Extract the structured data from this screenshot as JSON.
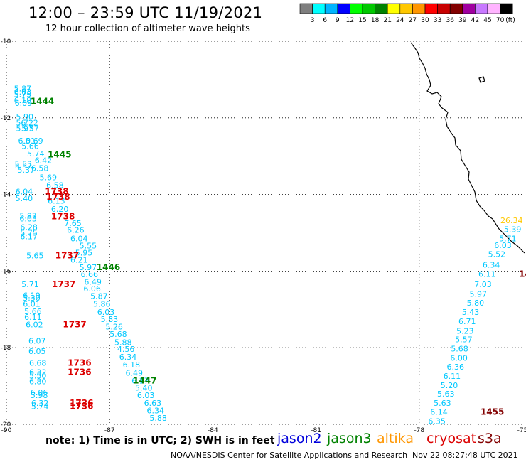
{
  "header": {
    "title": "12:00 – 23:59 UTC 11/19/2021",
    "subtitle": "12 hour collection of altimeter wave heights"
  },
  "legend": {
    "unit": "(ft)",
    "bins": [
      {
        "label": "3",
        "color": "#7f7f7f"
      },
      {
        "label": "6",
        "color": "#00ffff"
      },
      {
        "label": "9",
        "color": "#00b4ff"
      },
      {
        "label": "12",
        "color": "#0000ff"
      },
      {
        "label": "15",
        "color": "#00ff00"
      },
      {
        "label": "18",
        "color": "#00c800"
      },
      {
        "label": "21",
        "color": "#008200"
      },
      {
        "label": "24",
        "color": "#ffff00"
      },
      {
        "label": "27",
        "color": "#ffc800"
      },
      {
        "label": "30",
        "color": "#ff9600"
      },
      {
        "label": "33",
        "color": "#ff0000"
      },
      {
        "label": "36",
        "color": "#c80000"
      },
      {
        "label": "39",
        "color": "#820000"
      },
      {
        "label": "42",
        "color": "#a000a0"
      },
      {
        "label": "45",
        "color": "#c878ff"
      },
      {
        "label": "70",
        "color": "#ffb4ff"
      },
      {
        "label": "",
        "color": "#000000"
      }
    ]
  },
  "map": {
    "lon_ticks": [
      "-90",
      "-87",
      "-84",
      "-81",
      "-78",
      "-75"
    ],
    "lat_ticks": [
      "-10",
      "-12",
      "-14",
      "-16",
      "-18",
      "-20"
    ],
    "lon_range": [
      -90,
      -75
    ],
    "lat_range": [
      -20,
      -10
    ],
    "wave_labels": [
      {
        "text": "5.87",
        "color": "#00c8ff",
        "lon": -89.78,
        "lat": -11.31
      },
      {
        "text": "6.03",
        "color": "#00c8ff",
        "lon": -89.78,
        "lat": -11.39
      },
      {
        "text": "5.75",
        "color": "#00c8ff",
        "lon": -89.78,
        "lat": -11.46
      },
      {
        "text": "6.18",
        "color": "#00c8ff",
        "lon": -89.78,
        "lat": -11.61
      },
      {
        "text": "6.09",
        "color": "#00c8ff",
        "lon": -89.76,
        "lat": -11.69
      },
      {
        "text": "5.90",
        "color": "#00c8ff",
        "lon": -89.72,
        "lat": -12.04
      },
      {
        "text": "5.72",
        "color": "#00c8ff",
        "lon": -89.72,
        "lat": -12.2
      },
      {
        "text": "6.12",
        "color": "#00c8ff",
        "lon": -89.58,
        "lat": -12.2
      },
      {
        "text": "5.97",
        "color": "#00c8ff",
        "lon": -89.72,
        "lat": -12.35
      },
      {
        "text": "5.57",
        "color": "#00c8ff",
        "lon": -89.56,
        "lat": -12.35
      },
      {
        "text": "6.01",
        "color": "#00c8ff",
        "lon": -89.66,
        "lat": -12.67
      },
      {
        "text": "5.69",
        "color": "#00c8ff",
        "lon": -89.44,
        "lat": -12.67
      },
      {
        "text": "5.66",
        "color": "#00c8ff",
        "lon": -89.56,
        "lat": -12.81
      },
      {
        "text": "5.74",
        "color": "#00c8ff",
        "lon": -89.4,
        "lat": -13.01
      },
      {
        "text": "6.42",
        "color": "#00c8ff",
        "lon": -89.18,
        "lat": -13.18
      },
      {
        "text": "5.53",
        "color": "#00c8ff",
        "lon": -89.76,
        "lat": -13.27
      },
      {
        "text": "5.57",
        "color": "#00c8ff",
        "lon": -89.76,
        "lat": -13.32
      },
      {
        "text": "5.37",
        "color": "#00c8ff",
        "lon": -89.68,
        "lat": -13.43
      },
      {
        "text": "6.58",
        "color": "#00c8ff",
        "lon": -89.28,
        "lat": -13.39
      },
      {
        "text": "5.69",
        "color": "#00c8ff",
        "lon": -89.04,
        "lat": -13.63
      },
      {
        "text": "6.58",
        "color": "#00c8ff",
        "lon": -88.84,
        "lat": -13.83
      },
      {
        "text": "6.04",
        "color": "#00c8ff",
        "lon": -89.74,
        "lat": -14.0
      },
      {
        "text": "5.40",
        "color": "#00c8ff",
        "lon": -89.74,
        "lat": -14.17
      },
      {
        "text": "6.13",
        "color": "#00c8ff",
        "lon": -88.8,
        "lat": -14.24
      },
      {
        "text": "6.20",
        "color": "#00c8ff",
        "lon": -88.7,
        "lat": -14.45
      },
      {
        "text": "5.87",
        "color": "#00c8ff",
        "lon": -89.62,
        "lat": -14.63
      },
      {
        "text": "6.03",
        "color": "#00c8ff",
        "lon": -89.62,
        "lat": -14.7
      },
      {
        "text": "7.65",
        "color": "#00c8ff",
        "lon": -88.32,
        "lat": -14.82
      },
      {
        "text": "6.28",
        "color": "#00c8ff",
        "lon": -89.6,
        "lat": -14.93
      },
      {
        "text": "6.26",
        "color": "#00c8ff",
        "lon": -88.24,
        "lat": -15.0
      },
      {
        "text": "5.75",
        "color": "#00c8ff",
        "lon": -89.6,
        "lat": -15.07
      },
      {
        "text": "6.17",
        "color": "#00c8ff",
        "lon": -89.6,
        "lat": -15.17
      },
      {
        "text": "6.04",
        "color": "#00c8ff",
        "lon": -88.14,
        "lat": -15.22
      },
      {
        "text": "5.55",
        "color": "#00c8ff",
        "lon": -87.88,
        "lat": -15.41
      },
      {
        "text": "5.65",
        "color": "#00c8ff",
        "lon": -89.42,
        "lat": -15.67
      },
      {
        "text": "5.95",
        "color": "#00c8ff",
        "lon": -88.0,
        "lat": -15.59
      },
      {
        "text": "6.21",
        "color": "#00c8ff",
        "lon": -88.14,
        "lat": -15.78
      },
      {
        "text": "5.97",
        "color": "#00c8ff",
        "lon": -87.88,
        "lat": -15.97
      },
      {
        "text": "6.66",
        "color": "#00c8ff",
        "lon": -87.84,
        "lat": -16.16
      },
      {
        "text": "6.49",
        "color": "#00c8ff",
        "lon": -87.74,
        "lat": -16.35
      },
      {
        "text": "5.71",
        "color": "#00c8ff",
        "lon": -89.56,
        "lat": -16.42
      },
      {
        "text": "6.06",
        "color": "#00c8ff",
        "lon": -87.76,
        "lat": -16.53
      },
      {
        "text": "6.19",
        "color": "#00c8ff",
        "lon": -89.52,
        "lat": -16.71
      },
      {
        "text": "5.30",
        "color": "#00c8ff",
        "lon": -89.52,
        "lat": -16.77
      },
      {
        "text": "5.87",
        "color": "#00c8ff",
        "lon": -87.56,
        "lat": -16.73
      },
      {
        "text": "6.01",
        "color": "#00c8ff",
        "lon": -89.52,
        "lat": -16.93
      },
      {
        "text": "5.86",
        "color": "#00c8ff",
        "lon": -87.48,
        "lat": -16.93
      },
      {
        "text": "5.66",
        "color": "#00c8ff",
        "lon": -89.48,
        "lat": -17.12
      },
      {
        "text": "6.03",
        "color": "#00c8ff",
        "lon": -87.36,
        "lat": -17.14
      },
      {
        "text": "6.11",
        "color": "#00c8ff",
        "lon": -89.48,
        "lat": -17.27
      },
      {
        "text": "5.83",
        "color": "#00c8ff",
        "lon": -87.26,
        "lat": -17.33
      },
      {
        "text": "6.02",
        "color": "#00c8ff",
        "lon": -89.44,
        "lat": -17.47
      },
      {
        "text": "5.26",
        "color": "#00c8ff",
        "lon": -87.12,
        "lat": -17.52
      },
      {
        "text": "5.68",
        "color": "#00c8ff",
        "lon": -87.0,
        "lat": -17.72
      },
      {
        "text": "6.07",
        "color": "#00c8ff",
        "lon": -89.36,
        "lat": -17.89
      },
      {
        "text": "5.88",
        "color": "#00c8ff",
        "lon": -86.86,
        "lat": -17.93
      },
      {
        "text": "6.05",
        "color": "#00c8ff",
        "lon": -89.36,
        "lat": -18.16
      },
      {
        "text": "4.56",
        "color": "#00c8ff",
        "lon": -86.78,
        "lat": -18.11
      },
      {
        "text": "6.34",
        "color": "#00c8ff",
        "lon": -86.72,
        "lat": -18.31
      },
      {
        "text": "6.68",
        "color": "#00c8ff",
        "lon": -89.34,
        "lat": -18.47
      },
      {
        "text": "6.18",
        "color": "#00c8ff",
        "lon": -86.62,
        "lat": -18.52
      },
      {
        "text": "6.32",
        "color": "#00c8ff",
        "lon": -89.34,
        "lat": -18.71
      },
      {
        "text": "6.49",
        "color": "#00c8ff",
        "lon": -86.54,
        "lat": -18.73
      },
      {
        "text": "5.50",
        "color": "#00c8ff",
        "lon": -89.34,
        "lat": -18.8
      },
      {
        "text": "6.17",
        "color": "#00c8ff",
        "lon": -86.36,
        "lat": -18.93
      },
      {
        "text": "6.80",
        "color": "#00c8ff",
        "lon": -89.34,
        "lat": -18.95
      },
      {
        "text": "5.40",
        "color": "#00c8ff",
        "lon": -86.26,
        "lat": -19.12
      },
      {
        "text": "6.06",
        "color": "#00c8ff",
        "lon": -89.3,
        "lat": -19.24
      },
      {
        "text": "5.98",
        "color": "#00c8ff",
        "lon": -89.3,
        "lat": -19.31
      },
      {
        "text": "6.03",
        "color": "#00c8ff",
        "lon": -86.2,
        "lat": -19.31
      },
      {
        "text": "6.32",
        "color": "#00c8ff",
        "lon": -89.28,
        "lat": -19.52
      },
      {
        "text": "6.63",
        "color": "#00c8ff",
        "lon": -86.0,
        "lat": -19.52
      },
      {
        "text": "5.74",
        "color": "#00c8ff",
        "lon": -89.28,
        "lat": -19.6
      },
      {
        "text": "6.34",
        "color": "#00c8ff",
        "lon": -85.92,
        "lat": -19.71
      },
      {
        "text": "5.88",
        "color": "#00c8ff",
        "lon": -85.84,
        "lat": -19.91
      },
      {
        "text": "26.34",
        "color": "#ffc800",
        "lon": -75.64,
        "lat": -14.75
      },
      {
        "text": "5.39",
        "color": "#00c8ff",
        "lon": -75.54,
        "lat": -14.98
      },
      {
        "text": "5.71",
        "color": "#00c8ff",
        "lon": -75.68,
        "lat": -15.22
      },
      {
        "text": "6.03",
        "color": "#00c8ff",
        "lon": -75.82,
        "lat": -15.4
      },
      {
        "text": "5.52",
        "color": "#00c8ff",
        "lon": -76.0,
        "lat": -15.63
      },
      {
        "text": "6.34",
        "color": "#00c8ff",
        "lon": -76.16,
        "lat": -15.91
      },
      {
        "text": "6.11",
        "color": "#00c8ff",
        "lon": -76.28,
        "lat": -16.15
      },
      {
        "text": "7.03",
        "color": "#00c8ff",
        "lon": -76.4,
        "lat": -16.42
      },
      {
        "text": "5.97",
        "color": "#00c8ff",
        "lon": -76.54,
        "lat": -16.67
      },
      {
        "text": "5.80",
        "color": "#00c8ff",
        "lon": -76.62,
        "lat": -16.9
      },
      {
        "text": "5.43",
        "color": "#00c8ff",
        "lon": -76.76,
        "lat": -17.14
      },
      {
        "text": "6.71",
        "color": "#00c8ff",
        "lon": -76.86,
        "lat": -17.38
      },
      {
        "text": "5.23",
        "color": "#00c8ff",
        "lon": -76.92,
        "lat": -17.63
      },
      {
        "text": "5.57",
        "color": "#00c8ff",
        "lon": -76.96,
        "lat": -17.86
      },
      {
        "text": "5.68",
        "color": "#00c8ff",
        "lon": -77.08,
        "lat": -18.1
      },
      {
        "text": "6.00",
        "color": "#00c8ff",
        "lon": -77.1,
        "lat": -18.34
      },
      {
        "text": "6.36",
        "color": "#00c8ff",
        "lon": -77.2,
        "lat": -18.57
      },
      {
        "text": "6.11",
        "color": "#00c8ff",
        "lon": -77.3,
        "lat": -18.81
      },
      {
        "text": "5.20",
        "color": "#00c8ff",
        "lon": -77.38,
        "lat": -19.05
      },
      {
        "text": "5.63",
        "color": "#00c8ff",
        "lon": -77.48,
        "lat": -19.28
      },
      {
        "text": "5.63",
        "color": "#00c8ff",
        "lon": -77.58,
        "lat": -19.52
      },
      {
        "text": "6.14",
        "color": "#00c8ff",
        "lon": -77.68,
        "lat": -19.75
      },
      {
        "text": "6.35",
        "color": "#00c8ff",
        "lon": -77.74,
        "lat": -19.99
      }
    ],
    "pass_labels": [
      {
        "text": "1444",
        "color": "#008200",
        "lon": -89.3,
        "lat": -11.64
      },
      {
        "text": "1445",
        "color": "#008200",
        "lon": -88.8,
        "lat": -13.03
      },
      {
        "text": "1738",
        "color": "#dc0000",
        "lon": -88.88,
        "lat": -14.0
      },
      {
        "text": "1738",
        "color": "#dc0000",
        "lon": -88.84,
        "lat": -14.14
      },
      {
        "text": "1738",
        "color": "#dc0000",
        "lon": -88.7,
        "lat": -14.65
      },
      {
        "text": "1737",
        "color": "#dc0000",
        "lon": -88.58,
        "lat": -15.67
      },
      {
        "text": "1446",
        "color": "#008200",
        "lon": -87.38,
        "lat": -15.97
      },
      {
        "text": "1737",
        "color": "#dc0000",
        "lon": -88.68,
        "lat": -16.42
      },
      {
        "text": "1737",
        "color": "#dc0000",
        "lon": -88.36,
        "lat": -17.47
      },
      {
        "text": "1736",
        "color": "#dc0000",
        "lon": -88.22,
        "lat": -18.47
      },
      {
        "text": "1736",
        "color": "#dc0000",
        "lon": -88.22,
        "lat": -18.71
      },
      {
        "text": "1447",
        "color": "#008200",
        "lon": -86.32,
        "lat": -18.93
      },
      {
        "text": "1736",
        "color": "#dc0000",
        "lon": -88.16,
        "lat": -19.52
      },
      {
        "text": "1736",
        "color": "#dc0000",
        "lon": -88.16,
        "lat": -19.6
      },
      {
        "text": "1455",
        "color": "#820000",
        "lon": -76.22,
        "lat": -19.75
      },
      {
        "text": "14",
        "color": "#820000",
        "lon": -75.1,
        "lat": -16.15
      }
    ]
  },
  "footer": {
    "note": "note:  1) Time is in UTC; 2) SWH is in feet",
    "missions": [
      {
        "name": "jason2",
        "color": "#0000dc"
      },
      {
        "name": "jason3",
        "color": "#008200"
      },
      {
        "name": "altika",
        "color": "#ff9600"
      },
      {
        "name": "cryosat",
        "color": "#dc0000"
      },
      {
        "name": "s3a",
        "color": "#820000"
      }
    ],
    "credit": "NOAA/NESDIS Center for Satellite Applications and Research",
    "generated": "Nov 22 08:27:48 UTC 2021"
  }
}
